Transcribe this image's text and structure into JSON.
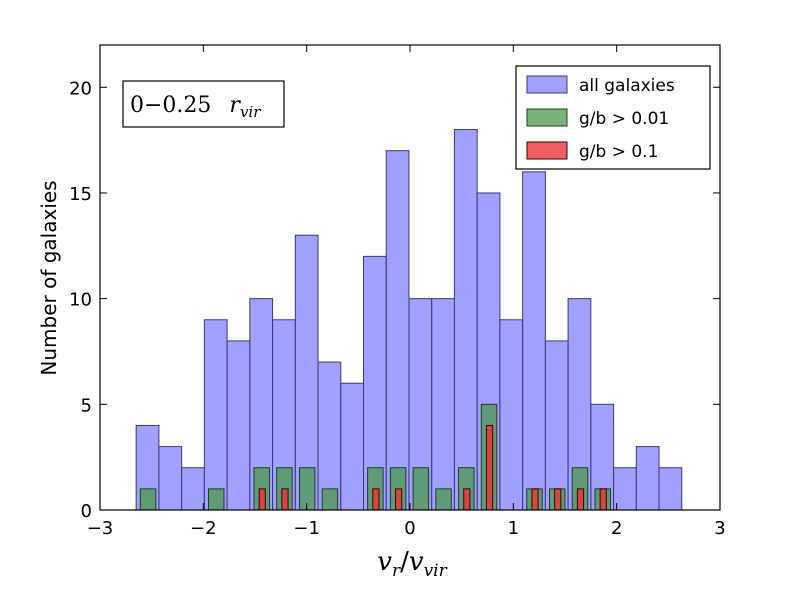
{
  "chart_data": {
    "type": "bar",
    "title": "",
    "xlabel": "v_r / v_vir",
    "xlabel_main": "v",
    "xlabel_sub_num": "r",
    "xlabel_slash": "/",
    "xlabel_sub_den": "vir",
    "ylabel": "Number of galaxies",
    "xlim": [
      -3,
      3
    ],
    "ylim": [
      0,
      22
    ],
    "xticks": [
      -3,
      -2,
      -1,
      0,
      1,
      2,
      3
    ],
    "xtick_labels": [
      "−3",
      "−2",
      "−1",
      "0",
      "1",
      "2",
      "3"
    ],
    "yticks": [
      0,
      5,
      10,
      15,
      20
    ],
    "ytick_labels": [
      "0",
      "5",
      "10",
      "15",
      "20"
    ],
    "annotation": {
      "range": "0−0.25",
      "symbol": "r",
      "subscript": "vir"
    },
    "legend_position": "top-right",
    "series": [
      {
        "name": "all galaxies",
        "color": "#8080ff",
        "stroke": "#3a3a7a",
        "bins": [
          {
            "x0": -2.65,
            "x1": -2.43,
            "value": 4
          },
          {
            "x0": -2.43,
            "x1": -2.21,
            "value": 3
          },
          {
            "x0": -2.21,
            "x1": -1.99,
            "value": 2
          },
          {
            "x0": -1.99,
            "x1": -1.77,
            "value": 9
          },
          {
            "x0": -1.77,
            "x1": -1.55,
            "value": 8
          },
          {
            "x0": -1.55,
            "x1": -1.33,
            "value": 10
          },
          {
            "x0": -1.33,
            "x1": -1.11,
            "value": 9
          },
          {
            "x0": -1.11,
            "x1": -0.89,
            "value": 13
          },
          {
            "x0": -0.89,
            "x1": -0.67,
            "value": 7
          },
          {
            "x0": -0.67,
            "x1": -0.45,
            "value": 6
          },
          {
            "x0": -0.45,
            "x1": -0.23,
            "value": 12
          },
          {
            "x0": -0.23,
            "x1": -0.01,
            "value": 17
          },
          {
            "x0": -0.01,
            "x1": 0.21,
            "value": 10
          },
          {
            "x0": 0.21,
            "x1": 0.43,
            "value": 10
          },
          {
            "x0": 0.43,
            "x1": 0.65,
            "value": 18
          },
          {
            "x0": 0.65,
            "x1": 0.87,
            "value": 15
          },
          {
            "x0": 0.87,
            "x1": 1.09,
            "value": 9
          },
          {
            "x0": 1.09,
            "x1": 1.31,
            "value": 16
          },
          {
            "x0": 1.31,
            "x1": 1.53,
            "value": 8
          },
          {
            "x0": 1.53,
            "x1": 1.75,
            "value": 10
          },
          {
            "x0": 1.75,
            "x1": 1.97,
            "value": 5
          },
          {
            "x0": 1.97,
            "x1": 2.19,
            "value": 2
          },
          {
            "x0": 2.19,
            "x1": 2.41,
            "value": 3
          },
          {
            "x0": 2.41,
            "x1": 2.63,
            "value": 2
          }
        ]
      },
      {
        "name": "g/b > 0.01",
        "color": "#4a9a4a",
        "stroke": "#1f3f1f",
        "bins": [
          {
            "x0": -2.61,
            "x1": -2.46,
            "value": 1
          },
          {
            "x0": -1.95,
            "x1": -1.8,
            "value": 1
          },
          {
            "x0": -1.51,
            "x1": -1.36,
            "value": 2
          },
          {
            "x0": -1.29,
            "x1": -1.14,
            "value": 2
          },
          {
            "x0": -1.07,
            "x1": -0.92,
            "value": 2
          },
          {
            "x0": -0.85,
            "x1": -0.7,
            "value": 1
          },
          {
            "x0": -0.41,
            "x1": -0.26,
            "value": 2
          },
          {
            "x0": -0.19,
            "x1": -0.04,
            "value": 2
          },
          {
            "x0": 0.03,
            "x1": 0.18,
            "value": 2
          },
          {
            "x0": 0.25,
            "x1": 0.4,
            "value": 1
          },
          {
            "x0": 0.47,
            "x1": 0.62,
            "value": 2
          },
          {
            "x0": 0.69,
            "x1": 0.84,
            "value": 5
          },
          {
            "x0": 1.13,
            "x1": 1.28,
            "value": 1
          },
          {
            "x0": 1.35,
            "x1": 1.5,
            "value": 1
          },
          {
            "x0": 1.57,
            "x1": 1.72,
            "value": 2
          },
          {
            "x0": 1.79,
            "x1": 1.94,
            "value": 1
          }
        ]
      },
      {
        "name": "g/b > 0.1",
        "color": "#ee3333",
        "stroke": "#3a0000",
        "bins": [
          {
            "x0": -1.46,
            "x1": -1.4,
            "value": 1
          },
          {
            "x0": -1.24,
            "x1": -1.18,
            "value": 1
          },
          {
            "x0": -0.36,
            "x1": -0.3,
            "value": 1
          },
          {
            "x0": -0.14,
            "x1": -0.08,
            "value": 1
          },
          {
            "x0": 0.52,
            "x1": 0.58,
            "value": 1
          },
          {
            "x0": 0.74,
            "x1": 0.8,
            "value": 4
          },
          {
            "x0": 1.18,
            "x1": 1.24,
            "value": 1
          },
          {
            "x0": 1.4,
            "x1": 1.46,
            "value": 1
          },
          {
            "x0": 1.62,
            "x1": 1.68,
            "value": 1
          },
          {
            "x0": 1.84,
            "x1": 1.9,
            "value": 1
          }
        ]
      }
    ]
  }
}
